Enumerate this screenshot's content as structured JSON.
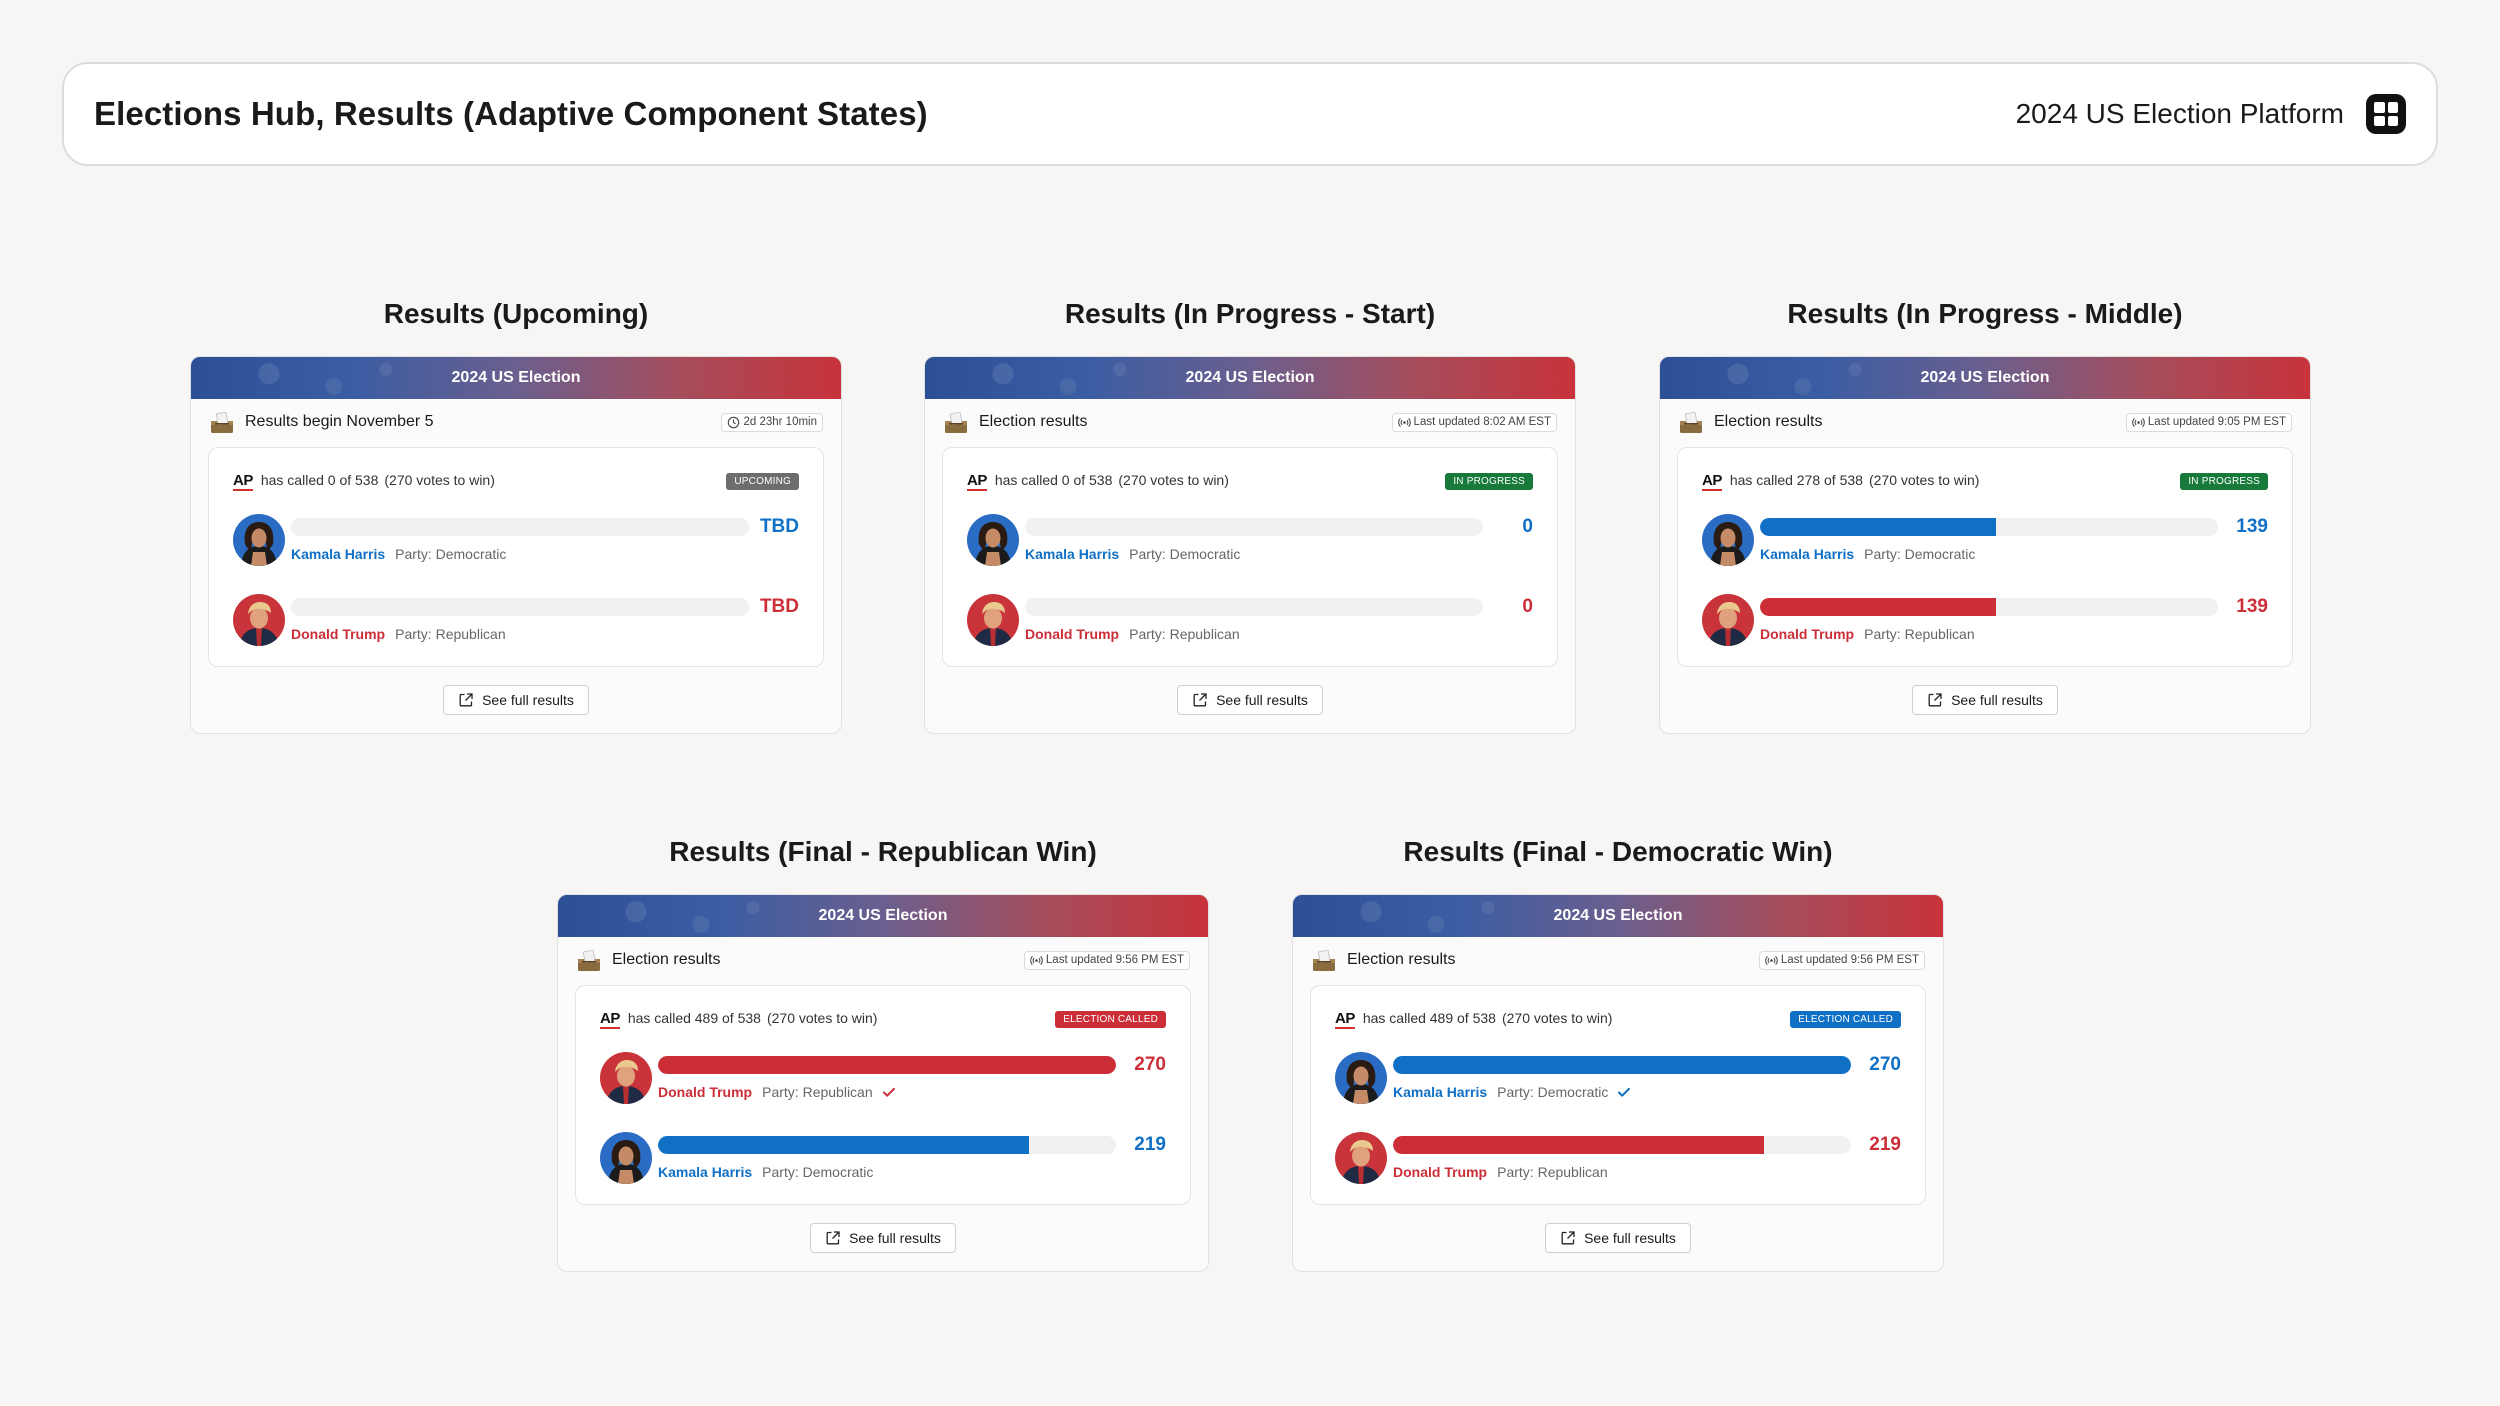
{
  "header": {
    "title": "Elections Hub, Results (Adaptive Component States)",
    "platform": "2024 US Election Platform"
  },
  "colors": {
    "democratic": "#1070c6",
    "republican": "#cc2e38",
    "upcoming_badge": "#6d6d6d",
    "in_progress_badge": "#177a3b",
    "called_rep_badge": "#cc2e38",
    "called_dem_badge": "#1070c6"
  },
  "cards": [
    {
      "section_title": "Results (Upcoming)",
      "banner": "2024 US Election",
      "header_title": "Results begin November 5",
      "time_icon": "clock-icon",
      "time_text": "2d 23hr 10min",
      "ap_label": "AP",
      "called_text": "has called 0 of 538",
      "win_text": "(270 votes to win)",
      "badge": "UPCOMING",
      "badge_color": "#6d6d6d",
      "candidates": [
        {
          "name": "Kamala Harris",
          "party": "Party: Democratic",
          "value": "TBD",
          "fill": 0,
          "side": "dem",
          "winner": false
        },
        {
          "name": "Donald Trump",
          "party": "Party: Republican",
          "value": "TBD",
          "fill": 0,
          "side": "rep",
          "winner": false
        }
      ],
      "button": "See full results"
    },
    {
      "section_title": "Results (In Progress - Start)",
      "banner": "2024 US Election",
      "header_title": "Election results",
      "time_icon": "live-signal-icon",
      "time_text": "Last updated 8:02 AM EST",
      "ap_label": "AP",
      "called_text": "has called 0 of 538",
      "win_text": "(270 votes to win)",
      "badge": "IN PROGRESS",
      "badge_color": "#177a3b",
      "candidates": [
        {
          "name": "Kamala Harris",
          "party": "Party: Democratic",
          "value": "0",
          "fill": 0,
          "side": "dem",
          "winner": false
        },
        {
          "name": "Donald Trump",
          "party": "Party: Republican",
          "value": "0",
          "fill": 0,
          "side": "rep",
          "winner": false
        }
      ],
      "button": "See full results"
    },
    {
      "section_title": "Results (In Progress - Middle)",
      "banner": "2024 US Election",
      "header_title": "Election results",
      "time_icon": "live-signal-icon",
      "time_text": "Last updated 9:05 PM EST",
      "ap_label": "AP",
      "called_text": "has called 278 of 538",
      "win_text": "(270 votes to win)",
      "badge": "IN PROGRESS",
      "badge_color": "#177a3b",
      "candidates": [
        {
          "name": "Kamala Harris",
          "party": "Party: Democratic",
          "value": "139",
          "fill": 0.5148,
          "side": "dem",
          "winner": false
        },
        {
          "name": "Donald Trump",
          "party": "Party: Republican",
          "value": "139",
          "fill": 0.5148,
          "side": "rep",
          "winner": false
        }
      ],
      "button": "See full results"
    },
    {
      "section_title": "Results (Final - Republican Win)",
      "banner": "2024 US Election",
      "header_title": "Election results",
      "time_icon": "live-signal-icon",
      "time_text": "Last updated 9:56 PM EST",
      "ap_label": "AP",
      "called_text": "has called 489 of 538",
      "win_text": "(270 votes to win)",
      "badge": "ELECTION CALLED",
      "badge_color": "#cc2e38",
      "candidates": [
        {
          "name": "Donald Trump",
          "party": "Party: Republican",
          "value": "270",
          "fill": 1.0,
          "side": "rep",
          "winner": true
        },
        {
          "name": "Kamala Harris",
          "party": "Party: Democratic",
          "value": "219",
          "fill": 0.8111,
          "side": "dem",
          "winner": false
        }
      ],
      "button": "See full results"
    },
    {
      "section_title": "Results (Final - Democratic Win)",
      "banner": "2024 US Election",
      "header_title": "Election results",
      "time_icon": "live-signal-icon",
      "time_text": "Last updated 9:56 PM EST",
      "ap_label": "AP",
      "called_text": "has called 489 of 538",
      "win_text": "(270 votes to win)",
      "badge": "ELECTION CALLED",
      "badge_color": "#1070c6",
      "candidates": [
        {
          "name": "Kamala Harris",
          "party": "Party: Democratic",
          "value": "270",
          "fill": 1.0,
          "side": "dem",
          "winner": true
        },
        {
          "name": "Donald Trump",
          "party": "Party: Republican",
          "value": "219",
          "fill": 0.8111,
          "side": "rep",
          "winner": false
        }
      ],
      "button": "See full results"
    }
  ]
}
